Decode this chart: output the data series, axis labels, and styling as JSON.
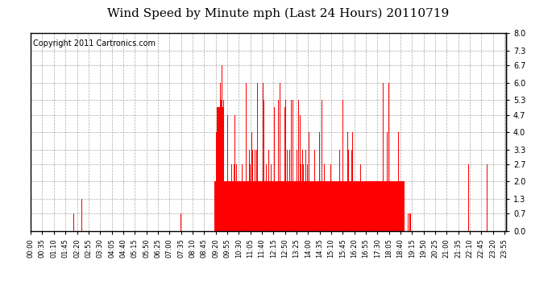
{
  "title": "Wind Speed by Minute mph (Last 24 Hours) 20110719",
  "copyright_text": "Copyright 2011 Cartronics.com",
  "bar_color": "#ff0000",
  "background_color": "#ffffff",
  "plot_bg_color": "#ffffff",
  "yticks": [
    0.0,
    0.7,
    1.3,
    2.0,
    2.7,
    3.3,
    4.0,
    4.7,
    5.3,
    6.0,
    6.7,
    7.3,
    8.0
  ],
  "ylim": [
    0.0,
    8.0
  ],
  "grid_color": "#aaaaaa",
  "grid_style": "--",
  "title_fontsize": 11,
  "copyright_fontsize": 7,
  "tick_labelsize": 6
}
